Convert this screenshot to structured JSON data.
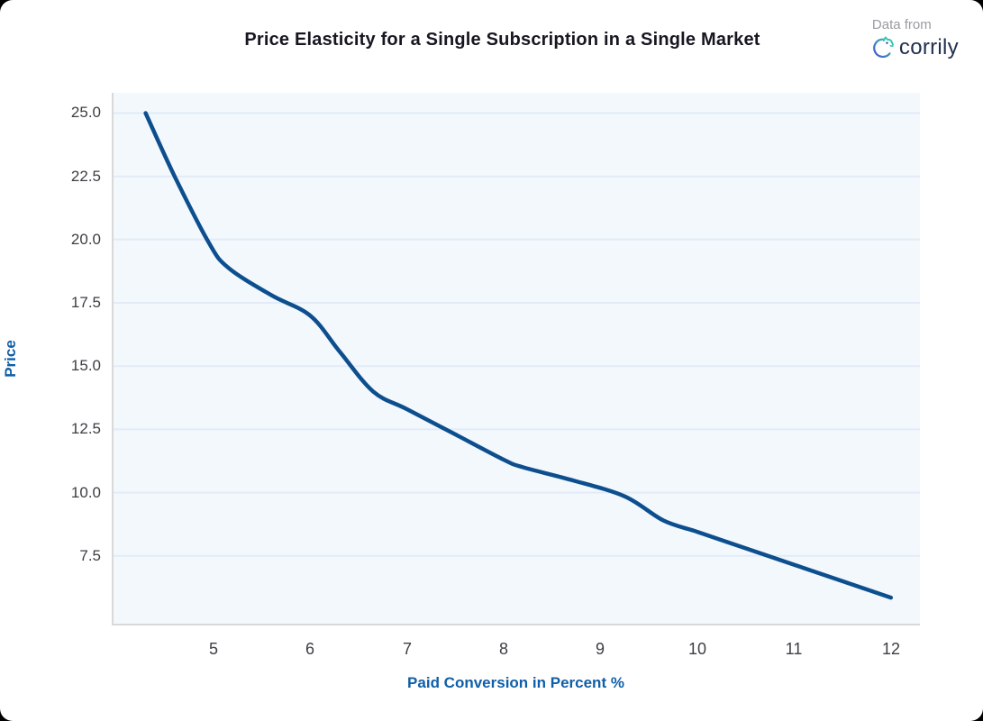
{
  "page": {
    "title": "Price Elasticity for a Single Subscription in a Single Market",
    "attribution": {
      "prefix": "Data from",
      "brand": "corrily"
    }
  },
  "chart_data": {
    "type": "line",
    "title": "Price Elasticity for a Single Subscription in a Single Market",
    "xlabel": "Paid Conversion in Percent %",
    "ylabel": "Price",
    "x": [
      4.3,
      4.6,
      4.95,
      5.15,
      5.6,
      6.0,
      6.3,
      6.65,
      7.0,
      7.5,
      8.0,
      8.2,
      8.7,
      9.25,
      9.65,
      10.0,
      10.5,
      11.0,
      11.5,
      12.0
    ],
    "y": [
      25.0,
      22.5,
      19.9,
      18.9,
      17.8,
      17.0,
      15.6,
      14.0,
      13.3,
      12.3,
      11.3,
      11.0,
      10.5,
      9.85,
      8.9,
      8.45,
      7.8,
      7.15,
      6.5,
      5.85
    ],
    "x_ticks": [
      5,
      6,
      7,
      8,
      9,
      10,
      11,
      12
    ],
    "y_ticks": [
      25.0,
      22.5,
      20.0,
      17.5,
      15.0,
      12.5,
      10.0,
      7.5
    ],
    "xlim": [
      3.95,
      12.3
    ],
    "ylim": [
      4.75,
      25.8
    ],
    "grid": "horizontal-only",
    "legend": "none",
    "colors": {
      "line": "#0d4f8e",
      "plot_background": "#f3f8fd",
      "gridline": "#e2ebf7",
      "axis_line": "#d9d9d9",
      "axis_title": "#0f5fa8",
      "tick_label": "#3e3e44",
      "title": "#171722",
      "brand_text": "#21304f",
      "logo_gradient_start": "#4a54d1",
      "logo_gradient_end": "#2dc7b2"
    }
  }
}
